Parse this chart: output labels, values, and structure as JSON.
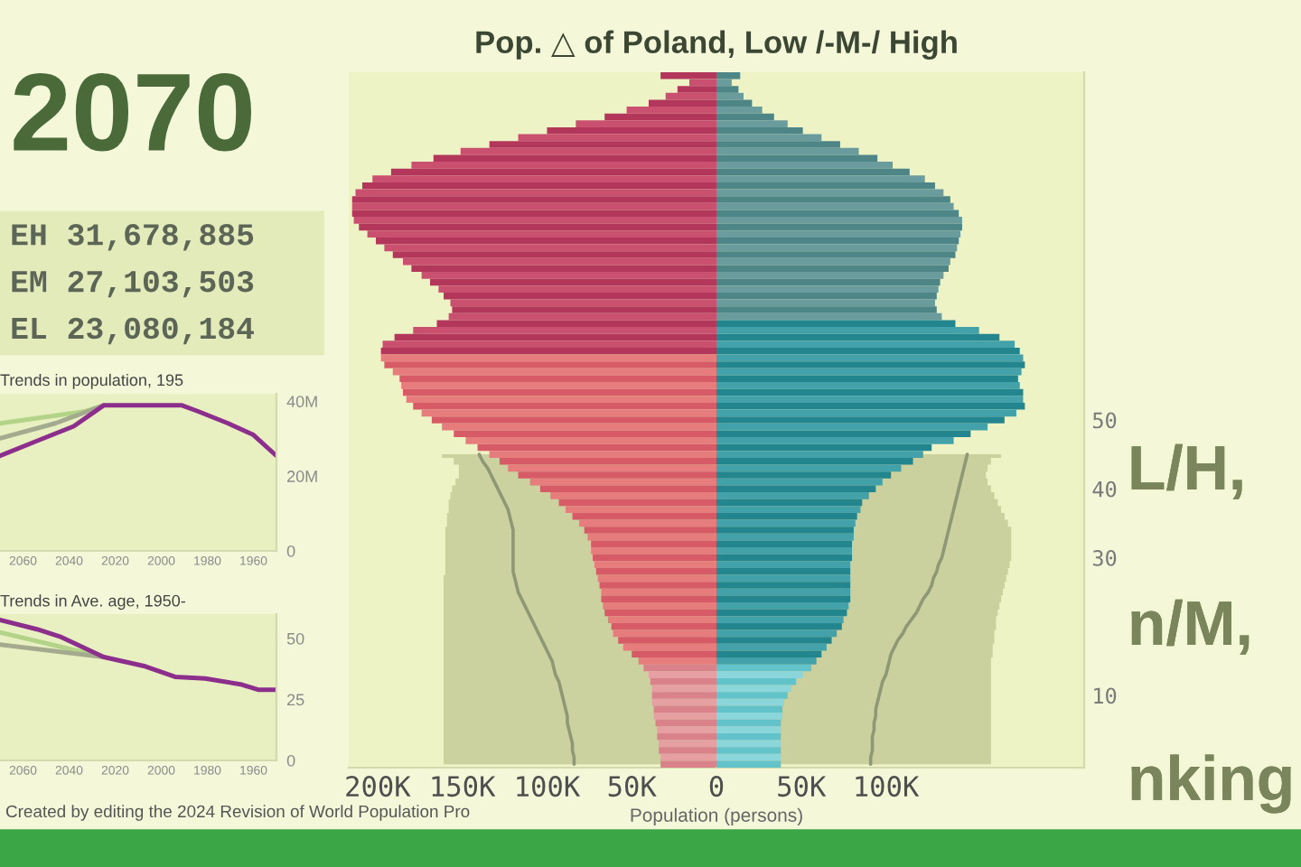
{
  "chart_data": [
    {
      "type": "other",
      "title": "2070",
      "annotations": [
        "EH 31,678,885",
        "EM 27,103,503",
        "EL 23,080,184"
      ]
    },
    {
      "type": "bar",
      "orientation": "horizontal",
      "title": "Pop. △ of Poland, Low /-M-/ High",
      "xlabel": "Population (persons)",
      "tick_labels": "x",
      "categories": [
        null,
        null,
        null,
        null,
        null,
        null,
        null,
        null,
        null,
        null,
        null,
        null,
        null,
        null,
        null,
        null,
        null,
        null,
        null,
        null,
        null,
        null,
        null,
        null,
        null,
        null,
        null,
        null,
        null,
        null,
        null,
        null,
        null,
        null,
        null,
        null,
        null,
        null,
        null,
        null,
        null,
        null,
        null,
        null,
        null,
        null,
        null,
        null,
        null,
        null,
        "50",
        null,
        null,
        null,
        null,
        null,
        null,
        null,
        null,
        null,
        "40",
        null,
        null,
        null,
        null,
        null,
        null,
        null,
        null,
        null,
        "30",
        null,
        null,
        null,
        null,
        null,
        null,
        null,
        null,
        null,
        null,
        null,
        null,
        null,
        null,
        null,
        null,
        null,
        null,
        null,
        "10",
        null,
        null,
        null,
        null,
        null,
        null,
        null,
        null,
        null,
        null
      ],
      "series": [
        {
          "type": "area",
          "color": "#cbd19f",
          "values": [
            null,
            null,
            null,
            null,
            null,
            null,
            null,
            null,
            null,
            null,
            null,
            null,
            null,
            null,
            null,
            null,
            null,
            null,
            null,
            null,
            null,
            null,
            null,
            null,
            null,
            null,
            null,
            null,
            null,
            null,
            null,
            null,
            null,
            null,
            null,
            null,
            null,
            null,
            null,
            null,
            null,
            null,
            null,
            null,
            null,
            null,
            null,
            null,
            null,
            null,
            null,
            null,
            null,
            null,
            null,
            -162000,
            -155000,
            -152000,
            -152000,
            -154000,
            -156000,
            -157000,
            -158000,
            -158000,
            -159000,
            -159000,
            -160000,
            -160000,
            -160000,
            -160000,
            -160000,
            -160000,
            -160000,
            -161000,
            -161000,
            -161000,
            -161000,
            -161000,
            -161000,
            -161000,
            -161000,
            -161000,
            -161000,
            -161000,
            -161000,
            -161000,
            -161000,
            -161000,
            -161000,
            -161000,
            -161000,
            -161000,
            -161000,
            -161000,
            -161000,
            -161000,
            -161000,
            -161000,
            -161000,
            -161000,
            -161000
          ]
        },
        {
          "colors": [
            "#b3375b",
            "#c9506f",
            "#b3375b",
            "#c9506f",
            "#b3375b",
            "#c9506f",
            "#b3375b",
            "#c9506f",
            "#b3375b",
            "#c9506f",
            "#b3375b",
            "#c9506f",
            "#b3375b",
            "#c9506f",
            "#b3375b",
            "#c9506f",
            "#b3375b",
            "#c9506f",
            "#b3375b",
            "#c9506f",
            "#b3375b",
            "#c9506f",
            "#b3375b",
            "#c9506f",
            "#b3375b",
            "#c9506f",
            "#b3375b",
            "#c9506f",
            "#b3375b",
            "#c9506f",
            "#b3375b",
            "#c9506f",
            "#b3375b",
            "#c9506f",
            "#b3375b",
            "#c9506f",
            "#b3375b",
            "#c9506f",
            "#b3375b",
            "#c9506f",
            "#b3375b",
            "#e67c7c",
            "#d75a67",
            "#e67c7c",
            "#d75a67",
            "#e67c7c",
            "#d75a67",
            "#e67c7c",
            "#d75a67",
            "#e67c7c",
            "#d75a67",
            "#e67c7c",
            "#d75a67",
            "#e67c7c",
            "#d75a67",
            "#e67c7c",
            "#d75a67",
            "#e67c7c",
            "#d75a67",
            "#e67c7c",
            "#d75a67",
            "#e67c7c",
            "#d75a67",
            "#e67c7c",
            "#d75a67",
            "#e67c7c",
            "#d75a67",
            "#e67c7c",
            "#d75a67",
            "#e67c7c",
            "#d75a67",
            "#e67c7c",
            "#d75a67",
            "#e67c7c",
            "#d75a67",
            "#e67c7c",
            "#d75a67",
            "#e67c7c",
            "#d75a67",
            "#e67c7c",
            "#d75a67",
            "#e67c7c",
            "#d75a67",
            "#e67c7c",
            "#d75a67",
            "#e67c7c",
            "#d9828a",
            "#e6a0a2",
            "#d9828a",
            "#e6a0a2",
            "#d9828a",
            "#e6a0a2",
            "#d9828a",
            "#e6a0a2",
            "#d9828a",
            "#e6a0a2",
            "#d9828a",
            "#e6a0a2",
            "#d9828a",
            "#e6a0a2",
            "#d9828a"
          ],
          "values": [
            -33000,
            -16000,
            -23000,
            -30000,
            -40000,
            -53000,
            -66000,
            -83000,
            -100000,
            -117000,
            -134000,
            -151000,
            -167000,
            -180000,
            -192000,
            -203000,
            -209000,
            -213000,
            -215000,
            -215000,
            -215000,
            -214000,
            -211000,
            -206000,
            -201000,
            -196000,
            -191000,
            -185000,
            -180000,
            -174000,
            -169000,
            -164000,
            -161000,
            -157000,
            -156000,
            -158000,
            -165000,
            -179000,
            -190000,
            -197000,
            -198000,
            -198000,
            -196000,
            -191000,
            -187000,
            -186000,
            -185000,
            -183000,
            -179000,
            -174000,
            -168000,
            -162000,
            -155000,
            -148000,
            -141000,
            -134000,
            -128000,
            -123000,
            -117000,
            -110000,
            -104000,
            -98000,
            -93000,
            -89000,
            -85000,
            -81000,
            -78000,
            -76000,
            -74000,
            -74000,
            -73000,
            -72000,
            -71000,
            -70000,
            -69000,
            -68000,
            -68000,
            -67000,
            -66000,
            -64000,
            -62000,
            -61000,
            -58000,
            -55000,
            -50000,
            -46000,
            -43000,
            -40000,
            -39000,
            -38000,
            -38000,
            -38000,
            -37000,
            -37000,
            -36000,
            -35000,
            -35000,
            -34000,
            -34000,
            -33000,
            -33000
          ]
        },
        {
          "type": "line",
          "color": "#8e9874",
          "values": [
            null,
            null,
            null,
            null,
            null,
            null,
            null,
            null,
            null,
            null,
            null,
            null,
            null,
            null,
            null,
            null,
            null,
            null,
            null,
            null,
            null,
            null,
            null,
            null,
            null,
            null,
            null,
            null,
            null,
            null,
            null,
            null,
            null,
            null,
            null,
            null,
            null,
            null,
            null,
            null,
            null,
            null,
            null,
            null,
            null,
            null,
            null,
            null,
            null,
            null,
            null,
            null,
            null,
            null,
            null,
            -140000,
            -138000,
            -135000,
            -133000,
            -131000,
            -129000,
            -127000,
            -125000,
            -123000,
            -122000,
            -121000,
            -120000,
            -120000,
            -120000,
            -120000,
            -120000,
            -120000,
            -120000,
            -119000,
            -118000,
            -117000,
            -115000,
            -113000,
            -111000,
            -109000,
            -107000,
            -105000,
            -103000,
            -101000,
            -99000,
            -97000,
            -96000,
            -95000,
            -93000,
            -92000,
            -91000,
            -90000,
            -89000,
            -88000,
            -88000,
            -87000,
            -86000,
            -85000,
            -85000,
            -84000,
            -84000
          ]
        }
      ],
      "xlim": [
        -217000,
        0
      ],
      "xticks": [
        {
          "value": -200000,
          "label": "200K"
        },
        {
          "value": -150000,
          "label": "150K"
        },
        {
          "value": -100000,
          "label": "100K"
        },
        {
          "value": -50000,
          "label": "50K"
        }
      ]
    },
    {
      "type": "bar",
      "orientation": "horizontal",
      "categories": [
        null,
        null,
        null,
        null,
        null,
        null,
        null,
        null,
        null,
        null,
        null,
        null,
        null,
        null,
        null,
        null,
        null,
        null,
        null,
        null,
        null,
        null,
        null,
        null,
        null,
        null,
        null,
        null,
        null,
        null,
        null,
        null,
        null,
        null,
        null,
        null,
        null,
        null,
        null,
        null,
        null,
        null,
        null,
        null,
        null,
        null,
        null,
        null,
        null,
        null,
        "50",
        null,
        null,
        null,
        null,
        null,
        null,
        null,
        null,
        null,
        "40",
        null,
        null,
        null,
        null,
        null,
        null,
        null,
        null,
        null,
        "30",
        null,
        null,
        null,
        null,
        null,
        null,
        null,
        null,
        null,
        null,
        null,
        null,
        null,
        null,
        null,
        null,
        null,
        null,
        null,
        "10",
        null,
        null,
        null,
        null,
        null,
        null,
        null,
        null,
        null,
        null
      ],
      "series": [
        {
          "type": "area",
          "color": "#cad09e",
          "values": [
            null,
            null,
            null,
            null,
            null,
            null,
            null,
            null,
            null,
            null,
            null,
            null,
            null,
            null,
            null,
            null,
            null,
            null,
            null,
            null,
            null,
            null,
            null,
            null,
            null,
            null,
            null,
            null,
            null,
            null,
            null,
            null,
            null,
            null,
            null,
            null,
            null,
            null,
            null,
            null,
            null,
            null,
            null,
            null,
            null,
            null,
            null,
            null,
            null,
            null,
            null,
            null,
            null,
            null,
            null,
            168000,
            162000,
            160000,
            159000,
            160000,
            162000,
            164000,
            166000,
            168000,
            170000,
            172000,
            174000,
            174000,
            174000,
            174000,
            174000,
            173000,
            172000,
            171000,
            170000,
            169000,
            168000,
            167000,
            166000,
            165000,
            165000,
            164000,
            164000,
            163000,
            163000,
            162000,
            162000,
            162000,
            162000,
            162000,
            162000,
            162000,
            162000,
            162000,
            162000,
            162000,
            162000,
            162000,
            162000,
            162000,
            162000
          ]
        },
        {
          "colors": [
            "#4e8587",
            "#6a9c9d",
            "#4e8587",
            "#6a9c9d",
            "#4e8587",
            "#6a9c9d",
            "#4e8587",
            "#6a9c9d",
            "#4e8587",
            "#6a9c9d",
            "#4e8587",
            "#6a9c9d",
            "#4e8587",
            "#6a9c9d",
            "#4e8587",
            "#6a9c9d",
            "#4e8587",
            "#6a9c9d",
            "#4e8587",
            "#6a9c9d",
            "#4e8587",
            "#6a9c9d",
            "#4e8587",
            "#6a9c9d",
            "#4e8587",
            "#6a9c9d",
            "#4e8587",
            "#6a9c9d",
            "#4e8587",
            "#6a9c9d",
            "#4e8587",
            "#6a9c9d",
            "#4e8587",
            "#6a9c9d",
            "#4e8587",
            "#6a9c9d",
            "#23868f",
            "#43a2a9",
            "#23868f",
            "#43a2a9",
            "#23868f",
            "#43a2a9",
            "#23868f",
            "#43a2a9",
            "#23868f",
            "#43a2a9",
            "#23868f",
            "#43a2a9",
            "#23868f",
            "#43a2a9",
            "#23868f",
            "#43a2a9",
            "#23868f",
            "#43a2a9",
            "#23868f",
            "#43a2a9",
            "#23868f",
            "#43a2a9",
            "#23868f",
            "#43a2a9",
            "#23868f",
            "#43a2a9",
            "#23868f",
            "#43a2a9",
            "#23868f",
            "#43a2a9",
            "#23868f",
            "#43a2a9",
            "#23868f",
            "#43a2a9",
            "#23868f",
            "#43a2a9",
            "#23868f",
            "#43a2a9",
            "#23868f",
            "#43a2a9",
            "#23868f",
            "#43a2a9",
            "#23868f",
            "#43a2a9",
            "#23868f",
            "#43a2a9",
            "#23868f",
            "#43a2a9",
            "#23868f",
            "#43a2a9",
            "#62c3cb",
            "#8ad6db",
            "#62c3cb",
            "#8ad6db",
            "#62c3cb",
            "#8ad6db",
            "#62c3cb",
            "#8ad6db",
            "#62c3cb",
            "#8ad6db",
            "#62c3cb",
            "#8ad6db",
            "#62c3cb",
            "#8ad6db",
            "#62c3cb"
          ],
          "values": [
            14000,
            9000,
            13000,
            16000,
            21000,
            27000,
            34000,
            42000,
            51000,
            62000,
            73000,
            84000,
            95000,
            104000,
            114000,
            123000,
            129000,
            134000,
            138000,
            140000,
            143000,
            145000,
            145000,
            144000,
            143000,
            142000,
            141000,
            138000,
            137000,
            134000,
            132000,
            131000,
            130000,
            129000,
            130000,
            133000,
            141000,
            155000,
            167000,
            176000,
            179000,
            181000,
            182000,
            180000,
            178000,
            179000,
            181000,
            181000,
            182000,
            177000,
            170000,
            160000,
            150000,
            140000,
            127000,
            122000,
            116000,
            109000,
            103000,
            98000,
            94000,
            90000,
            86000,
            85000,
            83000,
            82000,
            81000,
            81000,
            80000,
            80000,
            80000,
            79000,
            79000,
            79000,
            79000,
            79000,
            79000,
            78000,
            77000,
            75000,
            74000,
            71000,
            68000,
            65000,
            62000,
            59000,
            56000,
            51000,
            47000,
            44000,
            42000,
            40000,
            39000,
            39000,
            38000,
            38000,
            38000,
            38000,
            38000,
            38000,
            38000
          ]
        },
        {
          "type": "line",
          "color": "#8e9874",
          "values": [
            null,
            null,
            null,
            null,
            null,
            null,
            null,
            null,
            null,
            null,
            null,
            null,
            null,
            null,
            null,
            null,
            null,
            null,
            null,
            null,
            null,
            null,
            null,
            null,
            null,
            null,
            null,
            null,
            null,
            null,
            null,
            null,
            null,
            null,
            null,
            null,
            null,
            null,
            null,
            null,
            null,
            null,
            null,
            null,
            null,
            null,
            null,
            null,
            null,
            null,
            null,
            null,
            null,
            null,
            null,
            148000,
            147000,
            146000,
            145000,
            144000,
            143000,
            142000,
            141000,
            140000,
            139000,
            138000,
            137000,
            136000,
            135000,
            134000,
            133000,
            131000,
            130000,
            128000,
            127000,
            125000,
            122000,
            120000,
            118000,
            115000,
            112000,
            110000,
            107000,
            105000,
            103000,
            102000,
            101000,
            100000,
            98000,
            97000,
            96000,
            95000,
            94000,
            94000,
            93000,
            93000,
            92000,
            92000,
            92000,
            91000,
            91000
          ]
        }
      ],
      "xlim": [
        0,
        217000
      ],
      "xticks": [
        0,
        {
          "value": 50000,
          "label": "50K"
        },
        {
          "value": 100000,
          "label": "100K"
        }
      ],
      "annotations": [
        "L/H,",
        "n/M,",
        "nking",
        "Created by editing the 2024 Revision of World Population Pro"
      ]
    },
    {
      "type": "line",
      "title": "Trends in population, 195",
      "series": [
        {
          "color": "#b3d488",
          "x": [
            2025,
            2033,
            2070
          ],
          "values": [
            38900000,
            37300000,
            34100000
          ]
        },
        {
          "color": "#a3aa8e",
          "x": [
            2025,
            2046,
            2070
          ],
          "values": [
            38900000,
            34100000,
            30100000
          ]
        },
        {
          "color": "#8c2f8c",
          "x": [
            1950,
            1960,
            1971,
            1984,
            1991,
            2025,
            2038,
            2054,
            2070
          ],
          "values": [
            25400000,
            31000000,
            34100000,
            37300000,
            38900000,
            38900000,
            33300000,
            29400000,
            25400000
          ]
        }
      ],
      "xlim": [
        2070,
        1950
      ],
      "xticks": [
        1960,
        1980,
        2000,
        2020,
        2040,
        2060
      ],
      "ylim": [
        0,
        42000000
      ],
      "yticks": [
        0,
        {
          "value": 20000000,
          "label": "20M"
        },
        {
          "value": 40000000,
          "label": "40M"
        }
      ]
    },
    {
      "type": "line",
      "title": "Trends in Ave. age, 1950-",
      "series": [
        {
          "color": "#b3d488",
          "x": [
            2025,
            2070
          ],
          "values": [
            42.4,
            52.5
          ]
        },
        {
          "color": "#a3aa8e",
          "x": [
            2025,
            2070
          ],
          "values": [
            42.4,
            47.5
          ]
        },
        {
          "color": "#8c2f8c",
          "x": [
            1950,
            1958,
            1965,
            1981,
            1994,
            2007,
            2025,
            2044,
            2054,
            2070
          ],
          "values": [
            29.0,
            29.0,
            31.1,
            33.6,
            34.3,
            38.6,
            42.4,
            50.8,
            53.8,
            57.6
          ]
        }
      ],
      "xlim": [
        2070,
        1950
      ],
      "xticks": [
        1960,
        1980,
        2000,
        2020,
        2040,
        2060
      ],
      "ylim": [
        0,
        60
      ],
      "yticks": [
        0,
        25,
        50
      ]
    }
  ]
}
